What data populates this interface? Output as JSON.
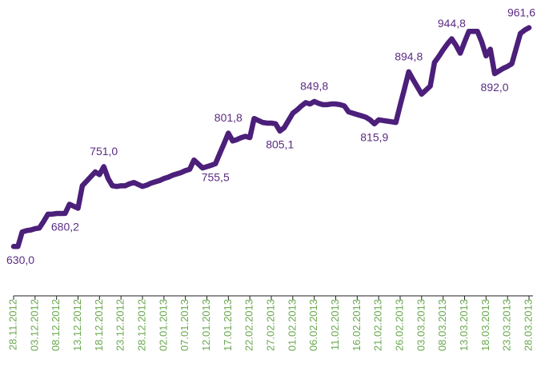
{
  "chart_data": {
    "type": "line",
    "categories": [
      "28.11.2012",
      null,
      null,
      null,
      null,
      "03.12.2012",
      null,
      null,
      null,
      null,
      "08.12.2012",
      null,
      null,
      null,
      null,
      "13.12.2012",
      null,
      null,
      null,
      null,
      "18.12.2012",
      null,
      null,
      null,
      null,
      "23.12.2012",
      null,
      null,
      null,
      null,
      "28.12.2012",
      null,
      null,
      null,
      null,
      "02.01.2013",
      null,
      null,
      null,
      null,
      "07.01.2013",
      null,
      null,
      null,
      null,
      "12.01.2013",
      null,
      null,
      null,
      null,
      "17.01.2013",
      null,
      null,
      null,
      null,
      "22.02.2013",
      null,
      null,
      null,
      null,
      "27.02.2013",
      null,
      null,
      null,
      null,
      "01.02.2013",
      null,
      null,
      null,
      null,
      "06.02.2013",
      null,
      null,
      null,
      null,
      "11.02.2013",
      null,
      null,
      null,
      null,
      "16.02.2013",
      null,
      null,
      null,
      null,
      "21.02.2013",
      null,
      null,
      null,
      null,
      "26.02.2013",
      null,
      null,
      null,
      null,
      "03.03.2013",
      null,
      null,
      null,
      null,
      "08.03.2013",
      null,
      null,
      null,
      null,
      "13.03.2013",
      null,
      null,
      null,
      null,
      "18.03.2013",
      null,
      null,
      null,
      null,
      "23.03.2013",
      null,
      null,
      null,
      null,
      "28.03.2013"
    ],
    "series": [
      {
        "color": "#4b1f7a",
        "values": [
          630.0,
          630,
          652,
          654,
          655,
          657,
          658,
          668,
          679,
          679,
          680,
          680,
          680.2,
          694,
          691,
          688,
          722,
          729,
          736,
          743,
          739,
          751.0,
          733,
          722,
          721,
          722,
          722,
          725,
          727,
          724,
          721,
          723,
          726,
          728,
          730,
          733,
          735,
          738,
          740,
          742,
          745,
          747,
          761,
          755,
          749,
          751,
          753,
          755.5,
          771,
          786,
          801.8,
          790,
          792,
          795,
          797,
          795,
          824,
          821,
          818,
          817,
          817,
          816,
          805.1,
          810,
          821,
          832,
          837,
          843,
          848,
          846,
          849.8,
          847,
          845,
          845,
          846,
          846,
          845,
          843,
          834,
          832,
          830,
          828,
          826,
          822,
          815.9,
          822,
          821,
          820,
          819,
          818,
          844,
          869,
          894.8,
          883,
          872,
          861,
          867,
          873,
          909,
          918,
          928,
          937,
          944.8,
          935,
          923,
          940,
          956,
          956,
          956,
          940,
          919,
          929,
          892.0,
          896,
          900,
          903,
          907,
          930,
          953,
          958,
          961.6
        ],
        "value_labels": [
          "630,0",
          null,
          null,
          null,
          null,
          null,
          null,
          null,
          null,
          null,
          null,
          null,
          "680,2",
          null,
          null,
          null,
          null,
          null,
          null,
          null,
          null,
          "751,0",
          null,
          null,
          null,
          null,
          null,
          null,
          null,
          null,
          null,
          null,
          null,
          null,
          null,
          null,
          null,
          null,
          null,
          null,
          null,
          null,
          null,
          null,
          null,
          null,
          null,
          "755,5",
          null,
          null,
          "801,8",
          null,
          null,
          null,
          null,
          null,
          null,
          null,
          null,
          null,
          null,
          null,
          "805,1",
          null,
          null,
          null,
          null,
          null,
          null,
          null,
          "849,8",
          null,
          null,
          null,
          null,
          null,
          null,
          null,
          null,
          null,
          null,
          null,
          null,
          null,
          "815,9",
          null,
          null,
          null,
          null,
          null,
          null,
          null,
          "894,8",
          null,
          null,
          null,
          null,
          null,
          null,
          null,
          null,
          null,
          "944,8",
          null,
          null,
          null,
          null,
          null,
          null,
          null,
          null,
          null,
          "892,0",
          null,
          null,
          null,
          null,
          null,
          null,
          null,
          "961,6"
        ]
      }
    ],
    "ylim": [
      600,
      1000
    ]
  }
}
